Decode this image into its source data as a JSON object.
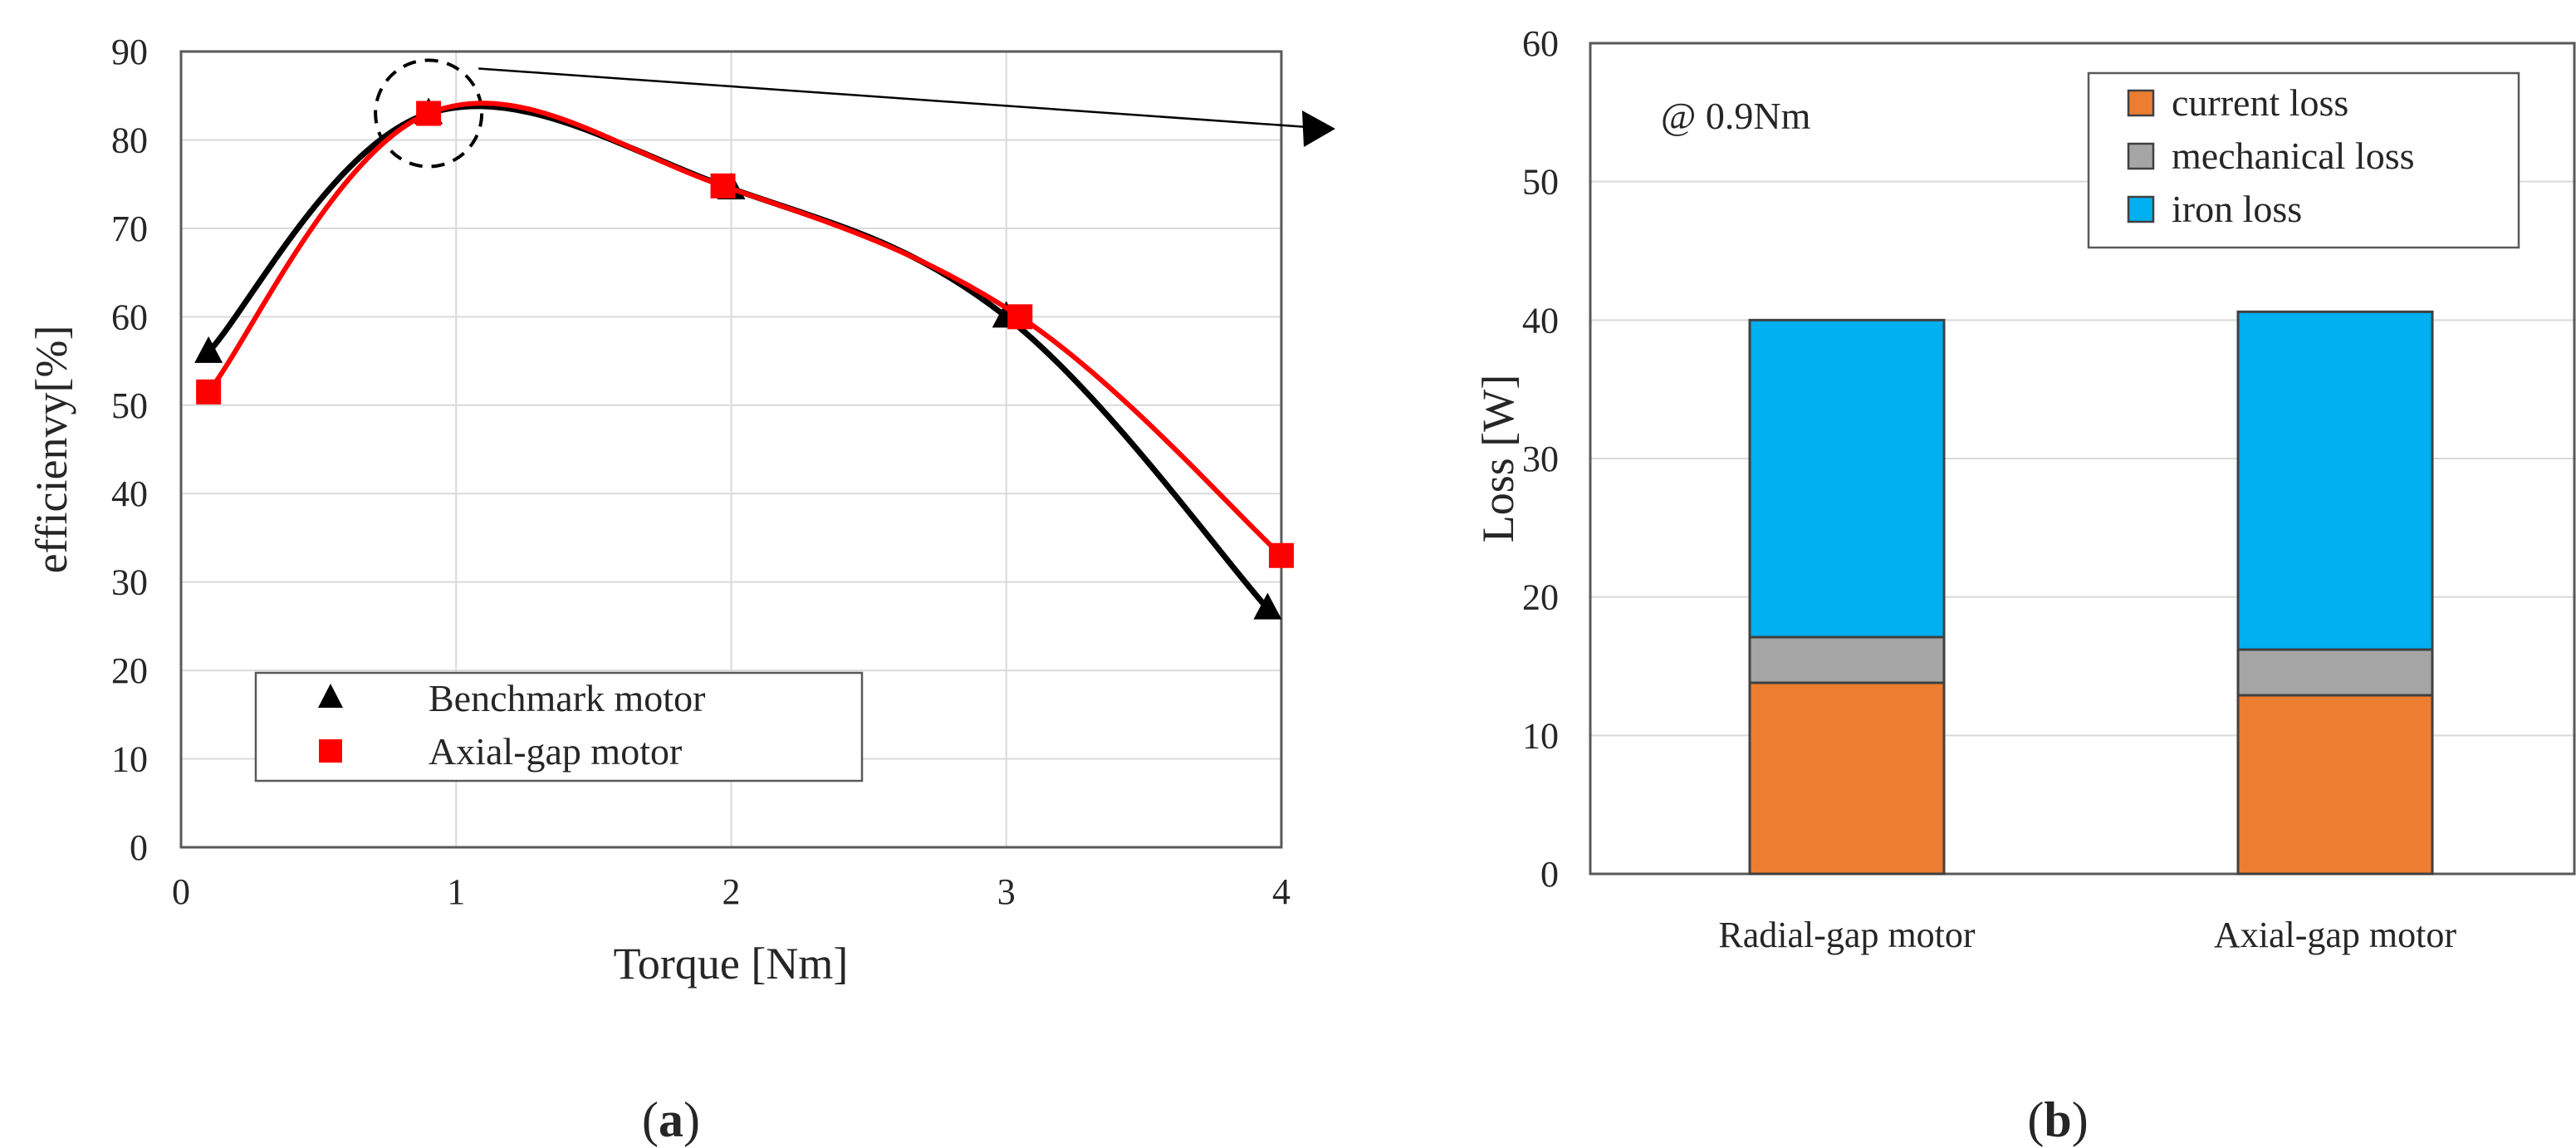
{
  "colors": {
    "benchmark": "#000000",
    "axial": "#ff0000",
    "current_loss": "#ed7d31",
    "mechanical_loss": "#a5a5a5",
    "iron_loss": "#00b0f0",
    "grid": "#d9d9d9",
    "axis": "#595959"
  },
  "panels": {
    "a": {
      "prefix": "(",
      "letter": "a",
      "suffix": ")"
    },
    "b": {
      "prefix": "(",
      "letter": "b",
      "suffix": ")"
    }
  },
  "chart_data": [
    {
      "type": "line",
      "panel": "a",
      "title": "",
      "xlabel": "Torque [Nm]",
      "ylabel": "efficienvy[%]",
      "xlim": [
        0,
        4
      ],
      "ylim": [
        0,
        90
      ],
      "xticks": [
        0,
        1,
        2,
        3,
        4
      ],
      "yticks": [
        0,
        10,
        20,
        30,
        40,
        50,
        60,
        70,
        80,
        90
      ],
      "grid": true,
      "legend_position": "bottom-left",
      "annotation": "dashed circle around the peak with an arrow pointing right",
      "series": [
        {
          "name": "Benchmark motor",
          "marker": "triangle",
          "color": "#000000",
          "x": [
            0.1,
            0.9,
            2.0,
            3.0,
            3.95
          ],
          "y": [
            56,
            83,
            74.5,
            60,
            27
          ]
        },
        {
          "name": "Axial-gap motor",
          "marker": "square",
          "color": "#ff0000",
          "x": [
            0.1,
            0.9,
            1.97,
            3.05,
            4.0
          ],
          "y": [
            51.5,
            83,
            74.8,
            60,
            33
          ]
        }
      ]
    },
    {
      "type": "bar",
      "stacked": true,
      "panel": "b",
      "title": "",
      "annotation": "@ 0.9Nm",
      "xlabel": "",
      "ylabel": "Loss [W]",
      "ylim": [
        0,
        60
      ],
      "yticks": [
        0,
        10,
        20,
        30,
        40,
        50,
        60
      ],
      "grid": true,
      "legend_position": "top-right",
      "categories": [
        "Radial-gap motor",
        "Axial-gap motor"
      ],
      "series": [
        {
          "name": "current loss",
          "color": "#ed7d31",
          "values": [
            13.8,
            12.9
          ]
        },
        {
          "name": "mechanical loss",
          "color": "#a5a5a5",
          "values": [
            3.3,
            3.3
          ]
        },
        {
          "name": "iron loss",
          "color": "#00b0f0",
          "values": [
            22.9,
            24.4
          ]
        }
      ]
    }
  ]
}
